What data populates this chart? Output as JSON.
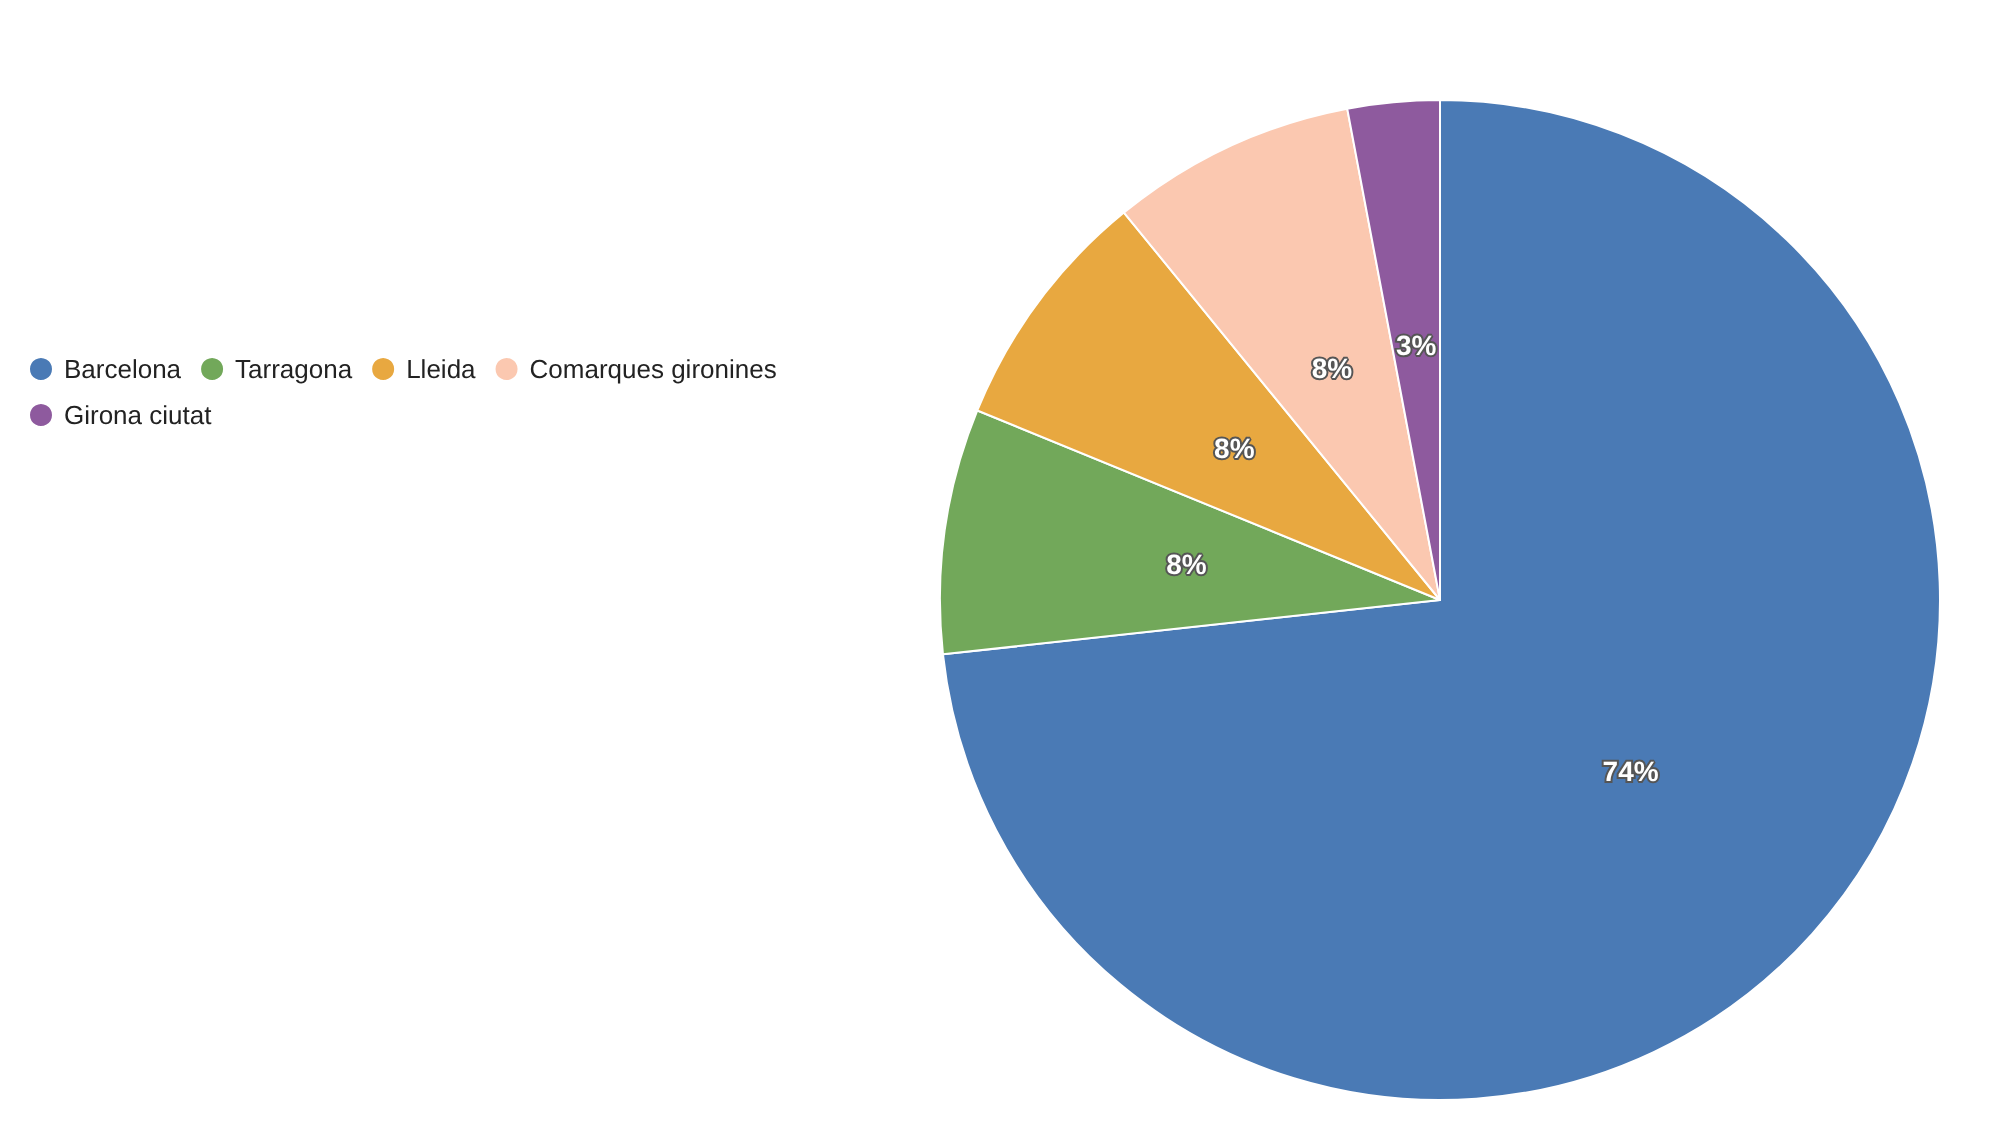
{
  "chart_data": {
    "type": "pie",
    "categories": [
      "Barcelona",
      "Tarragona",
      "Lleida",
      "Comarques gironines",
      "Girona ciutat"
    ],
    "values": [
      74,
      8,
      8,
      8,
      3
    ],
    "value_labels": [
      "74%",
      "8%",
      "8%",
      "8%",
      "3%"
    ],
    "colors": [
      "#4a7ab5",
      "#72a85a",
      "#e8a840",
      "#fbc8b0",
      "#8e5a9e"
    ],
    "legend": "left"
  }
}
